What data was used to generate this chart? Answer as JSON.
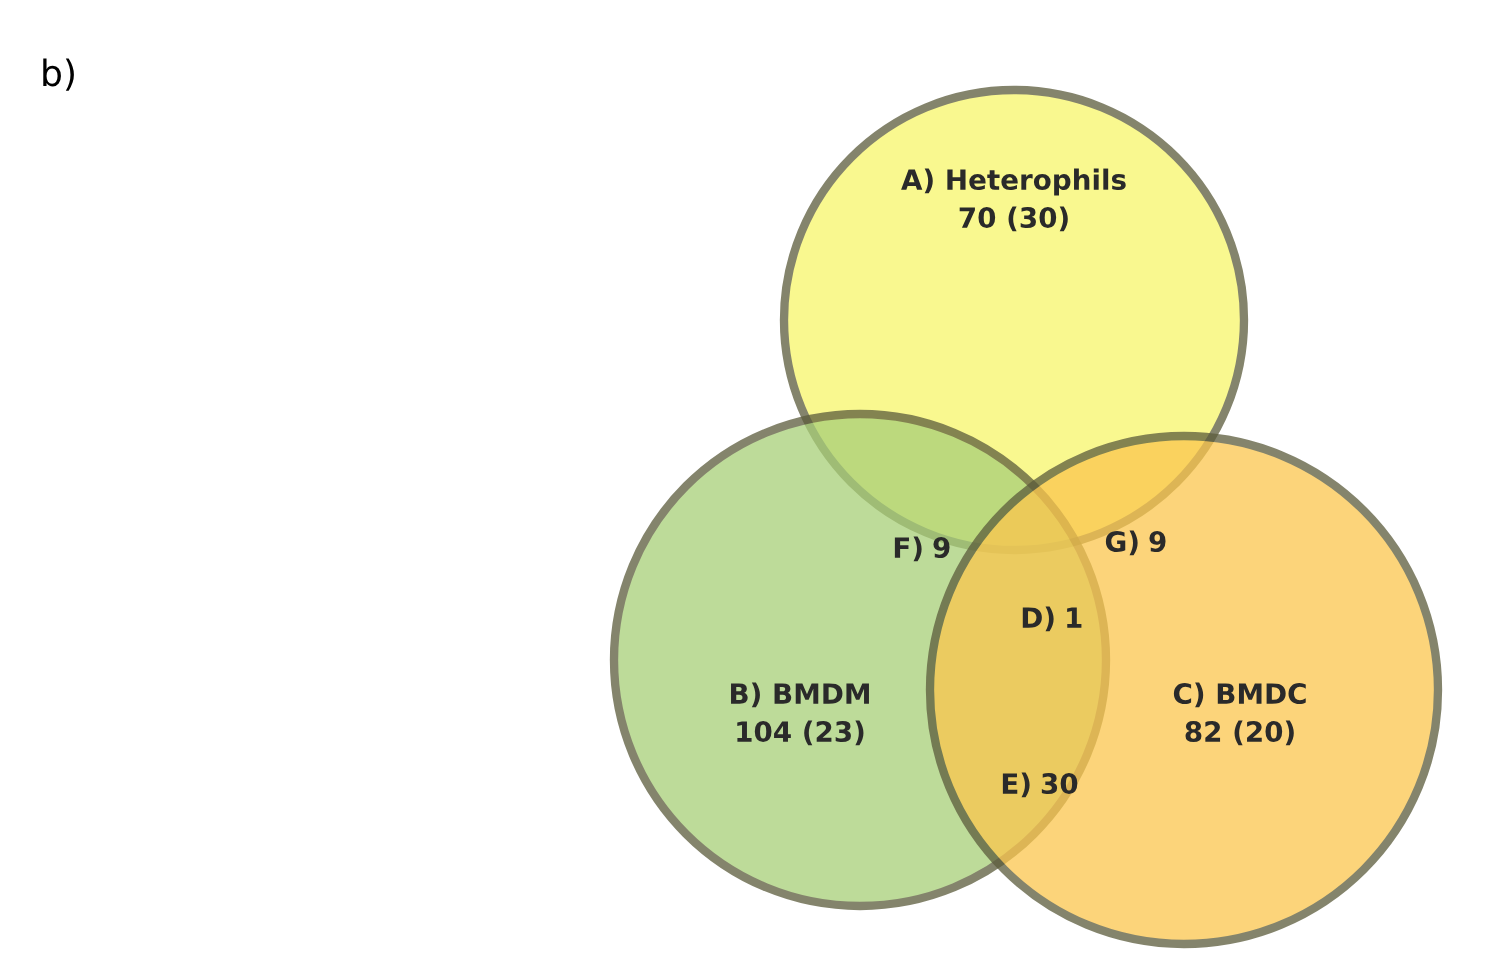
{
  "chart_data": {
    "type": "other",
    "title": "b)",
    "categories": [
      "A) Heterophils",
      "B) BMDM",
      "C) BMDC",
      "F)",
      "G)",
      "D)",
      "E)"
    ],
    "values": [
      70,
      104,
      82,
      9,
      9,
      1,
      30
    ],
    "value_labels": [
      "70 (30)",
      "104 (23)",
      "82 (20)",
      "9",
      "9",
      "1",
      "30"
    ],
    "colors": [
      "#f8f66a",
      "#a8cf78",
      "#fbc64e",
      null,
      null,
      null,
      null
    ]
  }
}
